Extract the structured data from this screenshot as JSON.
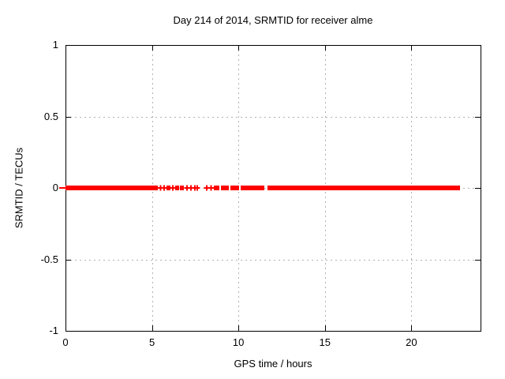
{
  "window": {
    "background": "#ffffff"
  },
  "chart_data": {
    "type": "scatter",
    "title": "Day 214 of 2014, SRMTID for receiver alme",
    "xlabel": "GPS time / hours",
    "ylabel": "SRMTID / TECUs",
    "xlim": [
      0,
      24
    ],
    "ylim": [
      -1,
      1
    ],
    "xticks": {
      "values": [
        0,
        5,
        10,
        15,
        20
      ],
      "labels": [
        "0",
        "5",
        "10",
        "15",
        "20"
      ]
    },
    "yticks": {
      "values": [
        1,
        0.5,
        0,
        -0.5,
        -1
      ],
      "labels": [
        "1",
        "0.5",
        "0",
        "-0.5",
        "-1"
      ]
    },
    "grid": true,
    "legend": "none",
    "marker": "plus",
    "colors": {
      "series": "#ff0000",
      "grid": "#b0b0b0",
      "border": "#000000",
      "text": "#000000",
      "background": "#ffffff"
    },
    "series": [
      {
        "name": "SRMTID",
        "color": "#ff0000",
        "y_value": 0,
        "first_point_overflows_left_axis": true,
        "x_segments_hours": [
          [
            0.0,
            5.34
          ],
          [
            5.43,
            5.57
          ],
          [
            5.66,
            5.75
          ],
          [
            5.84,
            6.07
          ],
          [
            6.16,
            6.25
          ],
          [
            6.34,
            6.57
          ],
          [
            6.62,
            6.84
          ],
          [
            6.98,
            7.07
          ],
          [
            7.21,
            7.3
          ],
          [
            7.46,
            7.5
          ],
          [
            7.6,
            7.64
          ],
          [
            8.15,
            8.19
          ],
          [
            8.35,
            8.49
          ],
          [
            8.58,
            8.9
          ],
          [
            8.99,
            9.44
          ],
          [
            9.54,
            10.04
          ],
          [
            10.13,
            11.5
          ],
          [
            11.68,
            22.81
          ]
        ]
      }
    ]
  }
}
